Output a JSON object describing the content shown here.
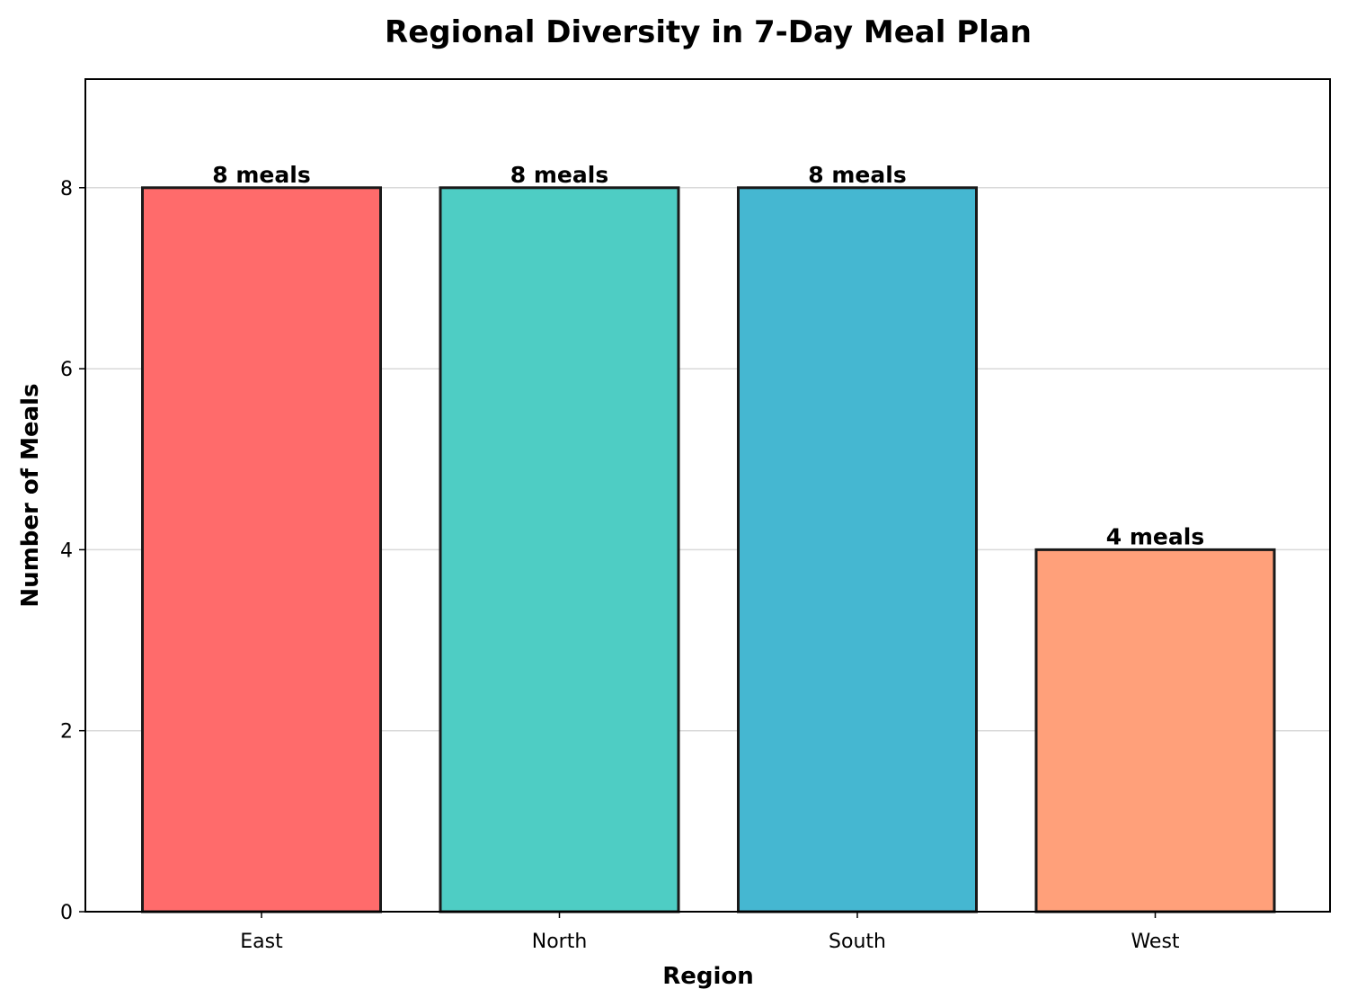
{
  "chart_data": {
    "type": "bar",
    "title": "Regional Diversity in 7-Day Meal Plan",
    "xlabel": "Region",
    "ylabel": "Number of Meals",
    "categories": [
      "East",
      "North",
      "South",
      "West"
    ],
    "values": [
      8,
      8,
      8,
      4
    ],
    "data_labels": [
      "8 meals",
      "8 meals",
      "8 meals",
      "4 meals"
    ],
    "colors": [
      "#FF6B6B",
      "#4ECDC4",
      "#45B7D1",
      "#FFA07A"
    ],
    "ylim": [
      0,
      9.2
    ],
    "yticks": [
      "0",
      "2",
      "4",
      "6",
      "8"
    ],
    "grid": true,
    "legend": "none"
  }
}
